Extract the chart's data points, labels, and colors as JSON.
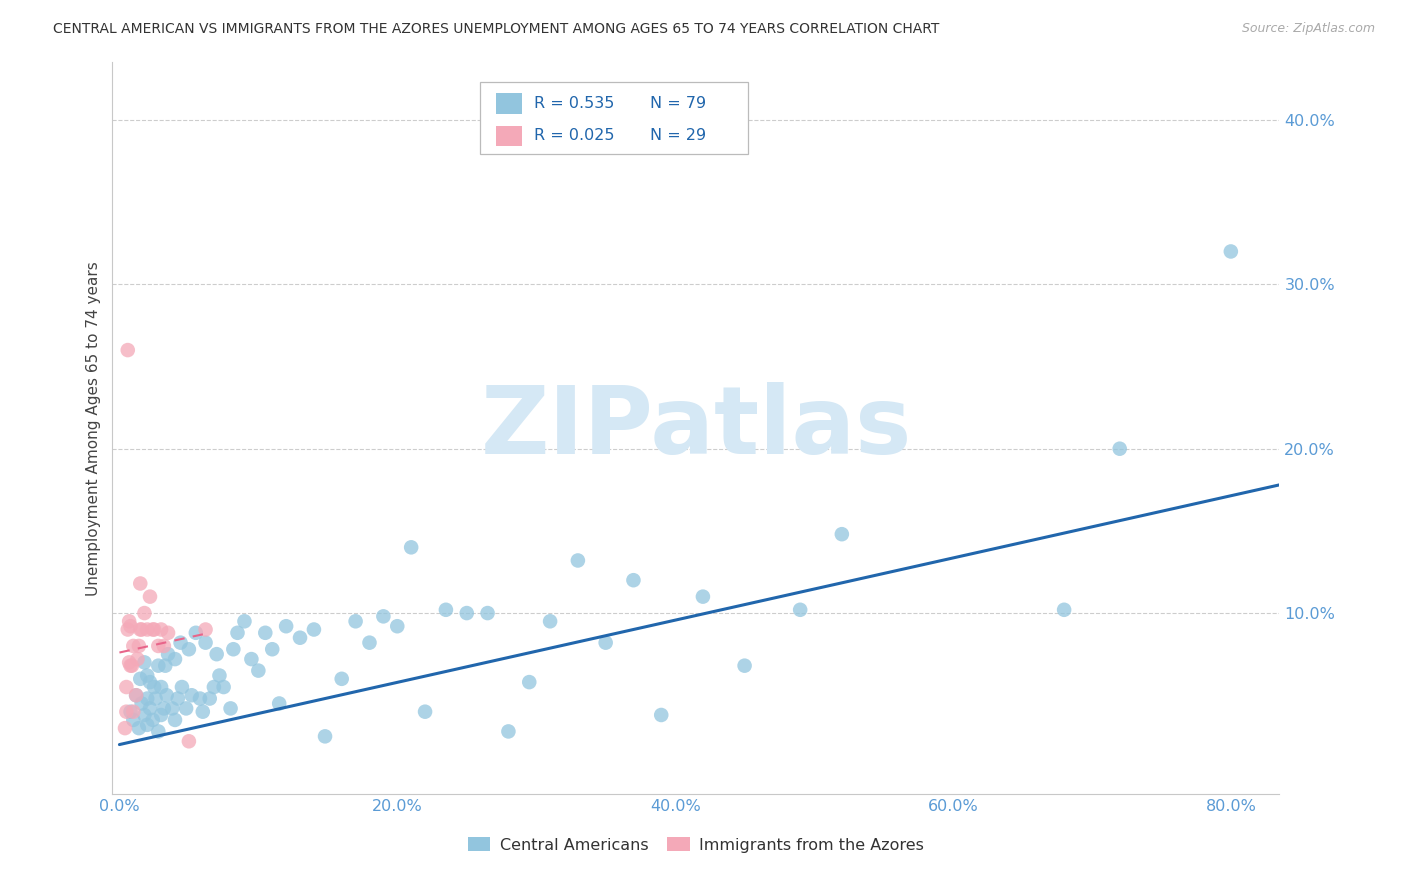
{
  "title": "CENTRAL AMERICAN VS IMMIGRANTS FROM THE AZORES UNEMPLOYMENT AMONG AGES 65 TO 74 YEARS CORRELATION CHART",
  "source": "Source: ZipAtlas.com",
  "ylabel": "Unemployment Among Ages 65 to 74 years",
  "xlabel_ticks": [
    "0.0%",
    "20.0%",
    "40.0%",
    "60.0%",
    "80.0%"
  ],
  "xlabel_vals": [
    0.0,
    0.2,
    0.4,
    0.6,
    0.8
  ],
  "ylabel_ticks": [
    "10.0%",
    "20.0%",
    "30.0%",
    "40.0%"
  ],
  "ylabel_vals": [
    0.1,
    0.2,
    0.3,
    0.4
  ],
  "xlim": [
    -0.005,
    0.835
  ],
  "ylim": [
    -0.01,
    0.435
  ],
  "blue_R": "0.535",
  "blue_N": "79",
  "pink_R": "0.025",
  "pink_N": "29",
  "blue_scatter_color": "#92c5de",
  "pink_scatter_color": "#f4a9b8",
  "blue_line_color": "#2166ac",
  "pink_line_color": "#e8658a",
  "axis_tick_color": "#5b9bd5",
  "grid_color": "#c8c8c8",
  "spine_color": "#c8c8c8",
  "watermark": "ZIPatlas",
  "watermark_color": "#d5e8f5",
  "legend_label_blue": "Central Americans",
  "legend_label_pink": "Immigrants from the Azores",
  "blue_scatter_x": [
    0.008,
    0.01,
    0.012,
    0.014,
    0.015,
    0.016,
    0.018,
    0.018,
    0.02,
    0.02,
    0.02,
    0.022,
    0.022,
    0.024,
    0.025,
    0.026,
    0.028,
    0.028,
    0.03,
    0.03,
    0.032,
    0.033,
    0.034,
    0.035,
    0.038,
    0.04,
    0.04,
    0.042,
    0.044,
    0.045,
    0.048,
    0.05,
    0.052,
    0.055,
    0.058,
    0.06,
    0.062,
    0.065,
    0.068,
    0.07,
    0.072,
    0.075,
    0.08,
    0.082,
    0.085,
    0.09,
    0.095,
    0.1,
    0.105,
    0.11,
    0.115,
    0.12,
    0.13,
    0.14,
    0.148,
    0.16,
    0.17,
    0.18,
    0.19,
    0.2,
    0.21,
    0.22,
    0.235,
    0.25,
    0.265,
    0.28,
    0.295,
    0.31,
    0.33,
    0.35,
    0.37,
    0.39,
    0.42,
    0.45,
    0.49,
    0.52,
    0.68,
    0.72,
    0.8
  ],
  "blue_scatter_y": [
    0.04,
    0.035,
    0.05,
    0.03,
    0.06,
    0.045,
    0.038,
    0.07,
    0.032,
    0.048,
    0.062,
    0.042,
    0.058,
    0.035,
    0.055,
    0.048,
    0.028,
    0.068,
    0.038,
    0.055,
    0.042,
    0.068,
    0.05,
    0.075,
    0.042,
    0.035,
    0.072,
    0.048,
    0.082,
    0.055,
    0.042,
    0.078,
    0.05,
    0.088,
    0.048,
    0.04,
    0.082,
    0.048,
    0.055,
    0.075,
    0.062,
    0.055,
    0.042,
    0.078,
    0.088,
    0.095,
    0.072,
    0.065,
    0.088,
    0.078,
    0.045,
    0.092,
    0.085,
    0.09,
    0.025,
    0.06,
    0.095,
    0.082,
    0.098,
    0.092,
    0.14,
    0.04,
    0.102,
    0.1,
    0.1,
    0.028,
    0.058,
    0.095,
    0.132,
    0.082,
    0.12,
    0.038,
    0.11,
    0.068,
    0.102,
    0.148,
    0.102,
    0.2,
    0.32
  ],
  "pink_scatter_x": [
    0.004,
    0.005,
    0.005,
    0.006,
    0.006,
    0.007,
    0.007,
    0.008,
    0.008,
    0.009,
    0.01,
    0.01,
    0.012,
    0.013,
    0.014,
    0.015,
    0.015,
    0.016,
    0.018,
    0.02,
    0.022,
    0.024,
    0.025,
    0.028,
    0.03,
    0.032,
    0.035,
    0.05,
    0.062
  ],
  "pink_scatter_y": [
    0.03,
    0.04,
    0.055,
    0.26,
    0.09,
    0.07,
    0.095,
    0.068,
    0.092,
    0.068,
    0.04,
    0.08,
    0.05,
    0.072,
    0.08,
    0.09,
    0.118,
    0.09,
    0.1,
    0.09,
    0.11,
    0.09,
    0.09,
    0.08,
    0.09,
    0.08,
    0.088,
    0.022,
    0.09
  ],
  "blue_trend_x": [
    0.0,
    0.835
  ],
  "blue_trend_y": [
    0.02,
    0.178
  ],
  "pink_trend_x": [
    0.0,
    0.065
  ],
  "pink_trend_y": [
    0.076,
    0.088
  ]
}
